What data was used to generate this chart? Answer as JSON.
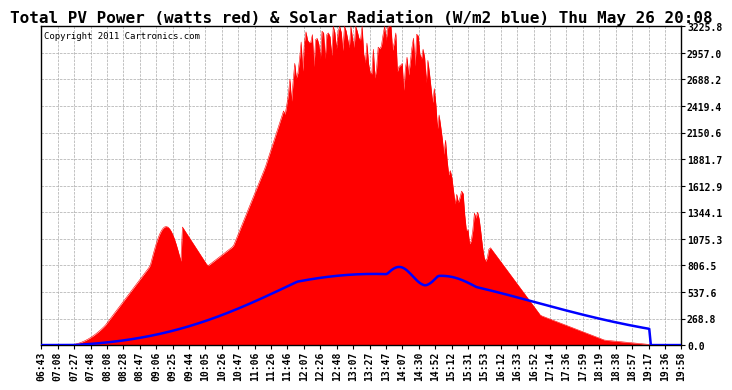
{
  "title": "Total PV Power (watts red) & Solar Radiation (W/m2 blue) Thu May 26 20:08",
  "copyright": "Copyright 2011 Cartronics.com",
  "ymax": 3225.8,
  "yticks": [
    0.0,
    268.8,
    537.6,
    806.5,
    1075.3,
    1344.1,
    1612.9,
    1881.7,
    2150.6,
    2419.4,
    2688.2,
    2957.0,
    3225.8
  ],
  "ytick_labels": [
    "0.0",
    "268.8",
    "537.6",
    "806.5",
    "1075.3",
    "1344.1",
    "1612.9",
    "1881.7",
    "2150.6",
    "2419.4",
    "2688.2",
    "2957.0",
    "3225.8"
  ],
  "xtick_labels": [
    "06:43",
    "07:08",
    "07:27",
    "07:48",
    "08:08",
    "08:28",
    "08:47",
    "09:06",
    "09:25",
    "09:44",
    "10:05",
    "10:26",
    "10:47",
    "11:06",
    "11:26",
    "11:46",
    "12:07",
    "12:26",
    "12:48",
    "13:07",
    "13:27",
    "13:47",
    "14:07",
    "14:30",
    "14:52",
    "15:12",
    "15:31",
    "15:53",
    "16:12",
    "16:33",
    "16:52",
    "17:14",
    "17:36",
    "17:59",
    "18:19",
    "18:38",
    "18:57",
    "19:17",
    "19:36",
    "19:58"
  ],
  "bg_color": "#ffffff",
  "plot_bg": "#ffffff",
  "grid_color": "#aaaaaa",
  "red_color": "#ff0000",
  "blue_color": "#0000ff",
  "title_fontsize": 11.5,
  "tick_fontsize": 7.0,
  "copyright_fontsize": 6.5
}
